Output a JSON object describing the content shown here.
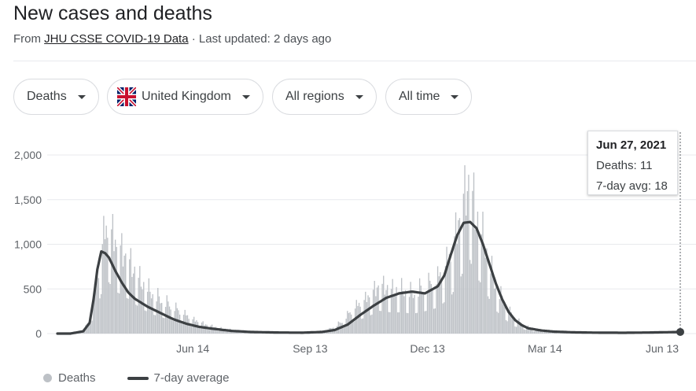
{
  "header": {
    "title": "New cases and deaths",
    "source_prefix": "From ",
    "source_link": "JHU CSSE COVID-19 Data",
    "source_suffix": " · Last updated: 2 days ago"
  },
  "filters": {
    "metric": "Deaths",
    "country": "United Kingdom",
    "region": "All regions",
    "period": "All time"
  },
  "tooltip": {
    "date": "Jun 27, 2021",
    "deaths": "Deaths: 11",
    "avg": "7-day avg: 18"
  },
  "legend": {
    "deaths": "Deaths",
    "avg": "7-day average"
  },
  "colors": {
    "bars": "#bdc1c6",
    "line": "#3c4043",
    "grid": "#e8eaed"
  },
  "chart_data": {
    "type": "bar",
    "title": "New cases and deaths",
    "ylim": [
      0,
      2000
    ],
    "y_ticks": [
      "0",
      "500",
      "1,000",
      "1,500",
      "2,000"
    ],
    "y_tick_values": [
      0,
      500,
      1000,
      1500,
      2000
    ],
    "x_tick_labels": [
      "Jun 14",
      "Sep 13",
      "Dec 13",
      "Mar 14",
      "Jun 13"
    ],
    "x_tick_days": [
      105,
      196,
      287,
      378,
      469
    ],
    "day_zero": "Mar 1, 2020",
    "x_range_days": [
      0,
      483
    ],
    "series": [
      {
        "name": "Deaths",
        "kind": "bar",
        "anchor_days": [
          0,
          10,
          20,
          25,
          30,
          35,
          40,
          45,
          55,
          65,
          75,
          85,
          95,
          105,
          115,
          125,
          140,
          160,
          180,
          200,
          210,
          220,
          230,
          240,
          250,
          260,
          268,
          275,
          285,
          295,
          305,
          310,
          315,
          320,
          324,
          328,
          332,
          336,
          340,
          345,
          350,
          355,
          360,
          365,
          372,
          380,
          390,
          400,
          420,
          440,
          460,
          483
        ],
        "anchor_values": [
          0,
          0,
          20,
          150,
          500,
          980,
          1150,
          950,
          780,
          560,
          420,
          330,
          240,
          150,
          95,
          60,
          30,
          12,
          10,
          18,
          40,
          120,
          270,
          370,
          510,
          470,
          480,
          440,
          500,
          580,
          820,
          1100,
          1400,
          1650,
          1300,
          1150,
          950,
          720,
          520,
          380,
          250,
          160,
          110,
          70,
          45,
          30,
          18,
          12,
          10,
          8,
          10,
          11
        ]
      },
      {
        "name": "7-day average",
        "kind": "line",
        "anchor_days": [
          0,
          10,
          20,
          25,
          28,
          31,
          34,
          37,
          40,
          45,
          50,
          55,
          60,
          70,
          80,
          90,
          100,
          110,
          120,
          135,
          150,
          170,
          190,
          205,
          215,
          225,
          235,
          245,
          255,
          265,
          275,
          285,
          295,
          300,
          305,
          310,
          315,
          320,
          325,
          330,
          335,
          340,
          345,
          350,
          355,
          360,
          365,
          375,
          385,
          400,
          420,
          440,
          460,
          483
        ],
        "anchor_values": [
          0,
          0,
          25,
          120,
          380,
          720,
          920,
          900,
          850,
          700,
          570,
          460,
          390,
          300,
          230,
          160,
          110,
          75,
          55,
          30,
          18,
          12,
          10,
          18,
          40,
          100,
          210,
          310,
          400,
          450,
          470,
          450,
          530,
          650,
          880,
          1100,
          1240,
          1250,
          1180,
          1000,
          780,
          560,
          380,
          240,
          150,
          95,
          60,
          35,
          22,
          14,
          10,
          9,
          12,
          18
        ]
      }
    ]
  }
}
